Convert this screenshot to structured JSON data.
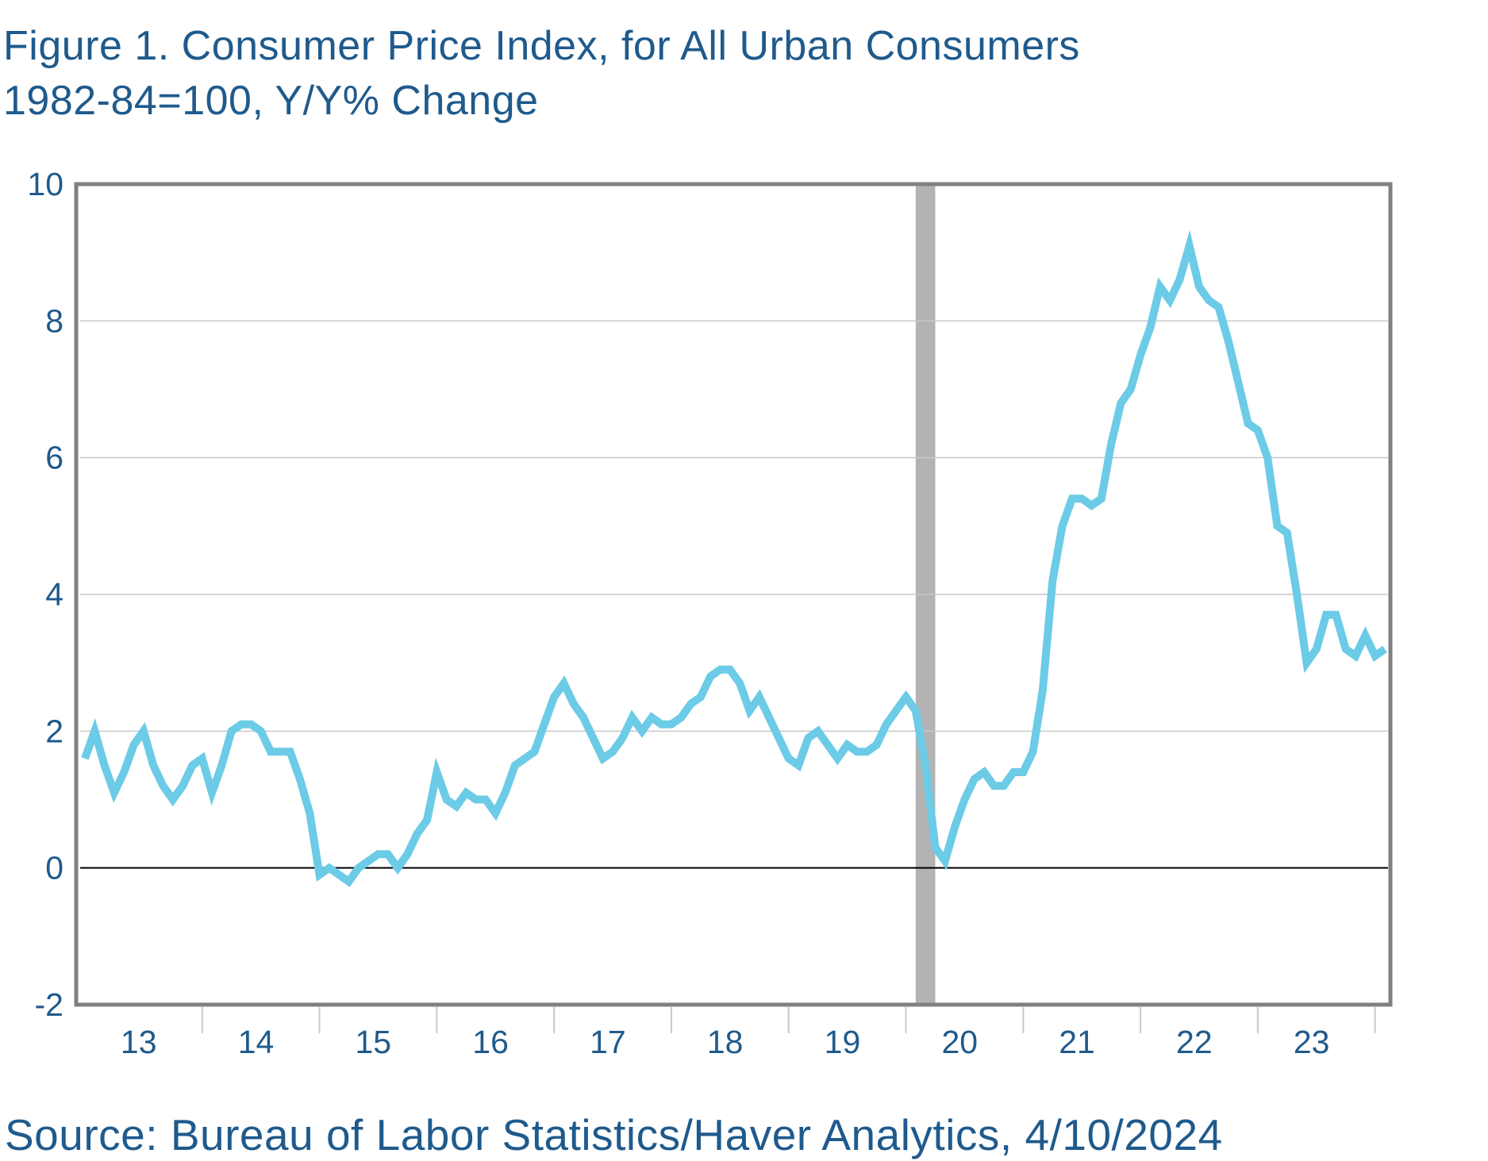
{
  "title_line1": "Figure 1. Consumer Price Index, for All Urban Consumers",
  "title_line2": "1982-84=100, Y/Y% Change",
  "source": "Source: Bureau of Labor Statistics/Haver Analytics, 4/10/2024",
  "colors": {
    "text": "#1f5a8c",
    "series_line": "#6ccbe6",
    "recession_shading": "#b3b3b3",
    "frame": "#808080",
    "gridline": "#c8c8c8",
    "zero_line": "#000000"
  },
  "chart_data": {
    "type": "line",
    "title": "Figure 1. Consumer Price Index, for All Urban Consumers",
    "subtitle": "1982-84=100, Y/Y% Change",
    "xlabel": "",
    "ylabel": "",
    "ylim": [
      -2,
      10
    ],
    "yticks": [
      -2,
      0,
      2,
      4,
      6,
      8,
      10
    ],
    "grid": "horizontal",
    "x_start": "2013-01",
    "x_end": "2024-02",
    "xtick_labels": [
      {
        "label": "13",
        "year": 2013
      },
      {
        "label": "14",
        "year": 2014
      },
      {
        "label": "15",
        "year": 2015
      },
      {
        "label": "16",
        "year": 2016
      },
      {
        "label": "17",
        "year": 2017
      },
      {
        "label": "18",
        "year": 2018
      },
      {
        "label": "19",
        "year": 2019
      },
      {
        "label": "20",
        "year": 2020
      },
      {
        "label": "21",
        "year": 2021
      },
      {
        "label": "22",
        "year": 2022
      },
      {
        "label": "23",
        "year": 2023
      }
    ],
    "recession": {
      "start": "2020-02",
      "end": "2020-04"
    },
    "series": [
      {
        "x": [
          "2013-01",
          "2013-02",
          "2013-03",
          "2013-04",
          "2013-05",
          "2013-06",
          "2013-07",
          "2013-08",
          "2013-09",
          "2013-10",
          "2013-11",
          "2013-12",
          "2014-01",
          "2014-02",
          "2014-03",
          "2014-04",
          "2014-05",
          "2014-06",
          "2014-07",
          "2014-08",
          "2014-09",
          "2014-10",
          "2014-11",
          "2014-12",
          "2015-01",
          "2015-02",
          "2015-03",
          "2015-04",
          "2015-05",
          "2015-06",
          "2015-07",
          "2015-08",
          "2015-09",
          "2015-10",
          "2015-11",
          "2015-12",
          "2016-01",
          "2016-02",
          "2016-03",
          "2016-04",
          "2016-05",
          "2016-06",
          "2016-07",
          "2016-08",
          "2016-09",
          "2016-10",
          "2016-11",
          "2016-12",
          "2017-01",
          "2017-02",
          "2017-03",
          "2017-04",
          "2017-05",
          "2017-06",
          "2017-07",
          "2017-08",
          "2017-09",
          "2017-10",
          "2017-11",
          "2017-12",
          "2018-01",
          "2018-02",
          "2018-03",
          "2018-04",
          "2018-05",
          "2018-06",
          "2018-07",
          "2018-08",
          "2018-09",
          "2018-10",
          "2018-11",
          "2018-12",
          "2019-01",
          "2019-02",
          "2019-03",
          "2019-04",
          "2019-05",
          "2019-06",
          "2019-07",
          "2019-08",
          "2019-09",
          "2019-10",
          "2019-11",
          "2019-12",
          "2020-01",
          "2020-02",
          "2020-03",
          "2020-04",
          "2020-05",
          "2020-06",
          "2020-07",
          "2020-08",
          "2020-09",
          "2020-10",
          "2020-11",
          "2020-12",
          "2021-01",
          "2021-02",
          "2021-03",
          "2021-04",
          "2021-05",
          "2021-06",
          "2021-07",
          "2021-08",
          "2021-09",
          "2021-10",
          "2021-11",
          "2021-12",
          "2022-01",
          "2022-02",
          "2022-03",
          "2022-04",
          "2022-05",
          "2022-06",
          "2022-07",
          "2022-08",
          "2022-09",
          "2022-10",
          "2022-11",
          "2022-12",
          "2023-01",
          "2023-02",
          "2023-03",
          "2023-04",
          "2023-05",
          "2023-06",
          "2023-07",
          "2023-08",
          "2023-09",
          "2023-10",
          "2023-11",
          "2023-12",
          "2024-01",
          "2024-02"
        ],
        "values": [
          1.6,
          2.0,
          1.5,
          1.1,
          1.4,
          1.8,
          2.0,
          1.5,
          1.2,
          1.0,
          1.2,
          1.5,
          1.6,
          1.1,
          1.5,
          2.0,
          2.1,
          2.1,
          2.0,
          1.7,
          1.7,
          1.7,
          1.3,
          0.8,
          -0.1,
          0.0,
          -0.1,
          -0.2,
          0.0,
          0.1,
          0.2,
          0.2,
          0.0,
          0.2,
          0.5,
          0.7,
          1.4,
          1.0,
          0.9,
          1.1,
          1.0,
          1.0,
          0.8,
          1.1,
          1.5,
          1.6,
          1.7,
          2.1,
          2.5,
          2.7,
          2.4,
          2.2,
          1.9,
          1.6,
          1.7,
          1.9,
          2.2,
          2.0,
          2.2,
          2.1,
          2.1,
          2.2,
          2.4,
          2.5,
          2.8,
          2.9,
          2.9,
          2.7,
          2.3,
          2.5,
          2.2,
          1.9,
          1.6,
          1.5,
          1.9,
          2.0,
          1.8,
          1.6,
          1.8,
          1.7,
          1.7,
          1.8,
          2.1,
          2.3,
          2.5,
          2.3,
          1.5,
          0.3,
          0.1,
          0.6,
          1.0,
          1.3,
          1.4,
          1.2,
          1.2,
          1.4,
          1.4,
          1.7,
          2.6,
          4.2,
          5.0,
          5.4,
          5.4,
          5.3,
          5.4,
          6.2,
          6.8,
          7.0,
          7.5,
          7.9,
          8.5,
          8.3,
          8.6,
          9.1,
          8.5,
          8.3,
          8.2,
          7.7,
          7.1,
          6.5,
          6.4,
          6.0,
          5.0,
          4.9,
          4.0,
          3.0,
          3.2,
          3.7,
          3.7,
          3.2,
          3.1,
          3.4,
          3.1,
          3.2
        ]
      }
    ]
  }
}
